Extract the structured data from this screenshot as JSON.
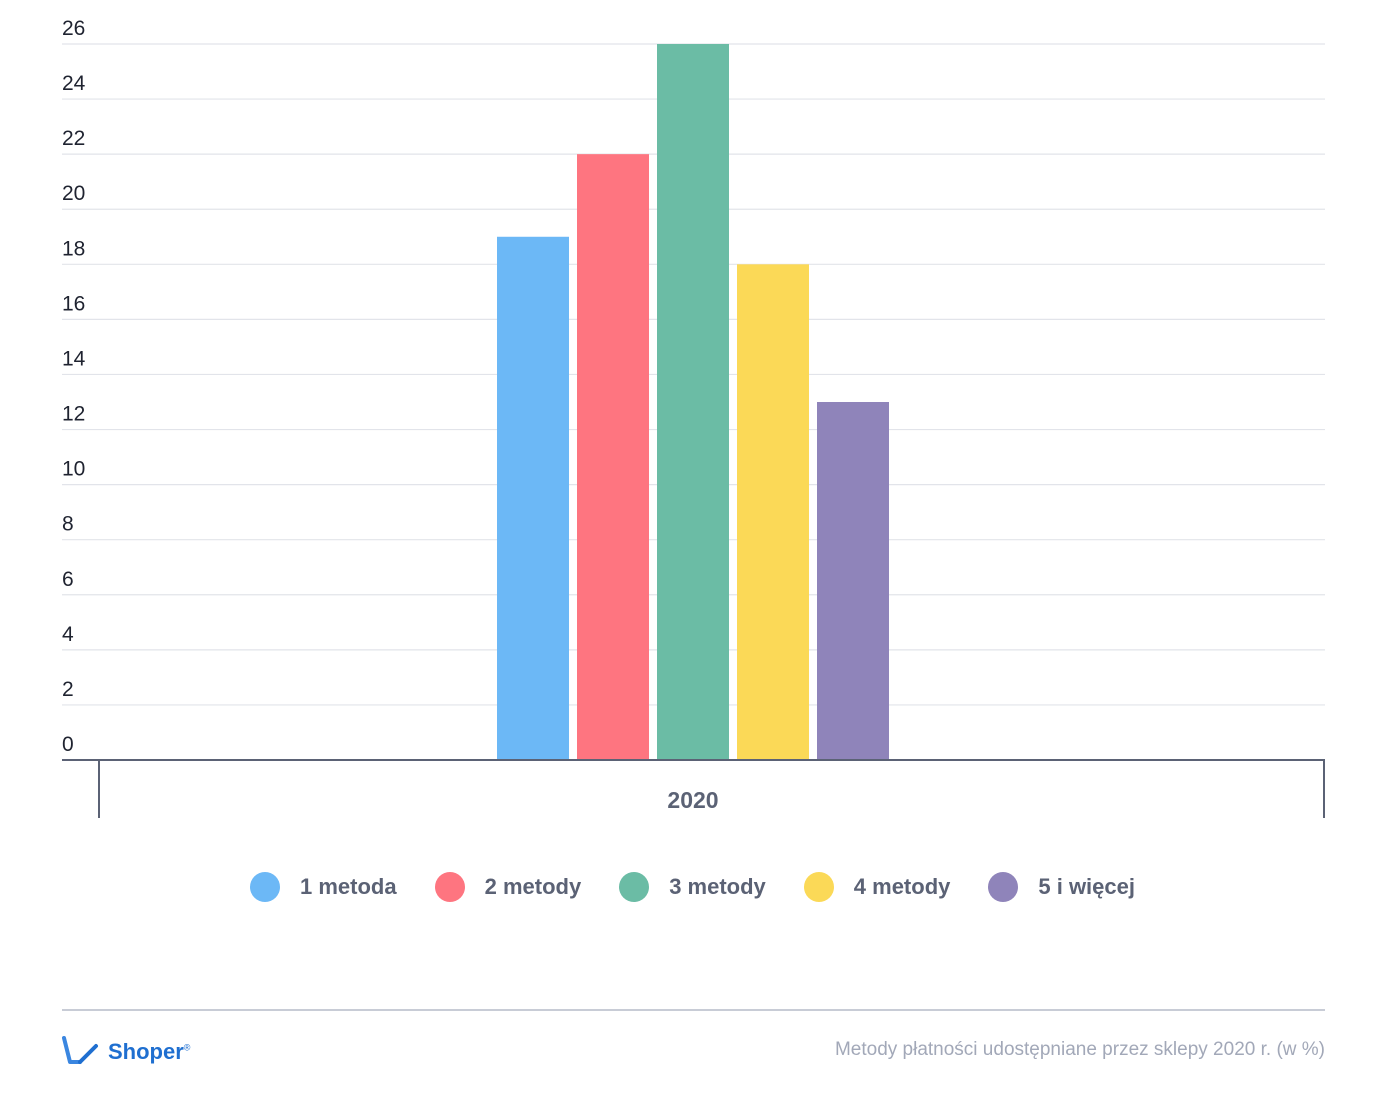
{
  "chart_data": {
    "type": "bar",
    "categories": [
      "2020"
    ],
    "series": [
      {
        "name": "1 metoda",
        "values": [
          19
        ],
        "color": "#6cb8f6"
      },
      {
        "name": "2 metody",
        "values": [
          22
        ],
        "color": "#fe7580"
      },
      {
        "name": "3 metody",
        "values": [
          26
        ],
        "color": "#6bbca5"
      },
      {
        "name": "4 metody",
        "values": [
          18
        ],
        "color": "#fbd957"
      },
      {
        "name": "5 i więcej",
        "values": [
          13
        ],
        "color": "#8f84ba"
      }
    ],
    "yticks": [
      0,
      2,
      4,
      6,
      8,
      10,
      12,
      14,
      16,
      18,
      20,
      22,
      24,
      26
    ],
    "ylim": [
      0,
      26
    ],
    "grid": true,
    "legend_position": "bottom"
  },
  "brand": {
    "name": "Shoper",
    "trademark": "®"
  },
  "caption": "Metody płatności udostępniane przez sklepy 2020 r. (w %)"
}
